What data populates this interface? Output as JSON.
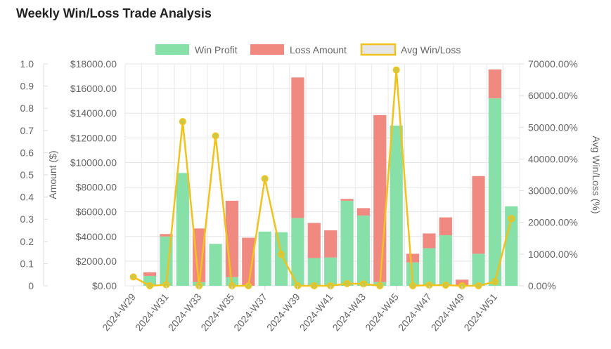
{
  "chart_data": {
    "type": "bar",
    "title": "Weekly Win/Loss Trade Analysis",
    "categories": [
      "2024-W29",
      "2024-W30",
      "2024-W31",
      "2024-W32",
      "2024-W33",
      "2024-W34",
      "2024-W35",
      "2024-W36",
      "2024-W37",
      "2024-W38",
      "2024-W39",
      "2024-W40",
      "2024-W41",
      "2024-W42",
      "2024-W43",
      "2024-W44",
      "2024-W45",
      "2024-W46",
      "2024-W47",
      "2024-W48",
      "2024-W49",
      "2024-W50",
      "2024-W51",
      "2024-W52"
    ],
    "x_tick_labels": [
      "2024-W29",
      "2024-W31",
      "2024-W33",
      "2024-W35",
      "2024-W37",
      "2024-W39",
      "2024-W41",
      "2024-W43",
      "2024-W45",
      "2024-W47",
      "2024-W49",
      "2024-W51"
    ],
    "series": [
      {
        "name": "Win Profit",
        "type": "bar",
        "axis": "y",
        "color": "#86e0a8",
        "stack": true,
        "values": [
          0,
          800,
          4000,
          9150,
          300,
          3400,
          700,
          0,
          4400,
          4350,
          5500,
          2250,
          2300,
          6900,
          5700,
          300,
          13000,
          1900,
          3050,
          4100,
          0,
          2600,
          15200,
          6450
        ]
      },
      {
        "name": "Loss Amount",
        "type": "bar",
        "axis": "y",
        "color": "#f08a80",
        "stack": true,
        "values": [
          0,
          300,
          200,
          0,
          4350,
          0,
          6200,
          3900,
          0,
          0,
          11400,
          2850,
          2200,
          150,
          600,
          13550,
          0,
          700,
          1200,
          1450,
          500,
          6300,
          2350,
          0
        ]
      },
      {
        "name": "Avg Win/Loss",
        "type": "line",
        "axis": "y2",
        "color": "#f2c21c",
        "values": [
          2800,
          0,
          300,
          51800,
          0,
          47300,
          0,
          0,
          33800,
          9900,
          0,
          0,
          0,
          700,
          600,
          0,
          68100,
          0,
          200,
          200,
          0,
          0,
          1300,
          21200
        ]
      }
    ],
    "ylim": [
      0,
      18000
    ],
    "y_ticks": [
      "$0.00",
      "$2000.00",
      "$4000.00",
      "$6000.00",
      "$8000.00",
      "$10000.00",
      "$12000.00",
      "$14000.00",
      "$16000.00",
      "$18000.00"
    ],
    "ylabel": "Amount ($)",
    "y2lim": [
      0,
      70000
    ],
    "y2_ticks": [
      "0.00%",
      "10000.00%",
      "20000.00%",
      "30000.00%",
      "40000.00%",
      "50000.00%",
      "60000.00%",
      "70000.00%"
    ],
    "y2label": "Avg Win/Loss (%)",
    "y3_ticks": [
      "0",
      "0.1",
      "0.2",
      "0.3",
      "0.4",
      "0.5",
      "0.6",
      "0.7",
      "0.8",
      "0.9",
      "1.0"
    ],
    "grid": true,
    "legend_position": "top"
  },
  "colors": {
    "win_fill": "#86e0a8",
    "loss_fill": "#f08a80",
    "line": "#f2c21c",
    "legend_line_fill": "#e6e6e6"
  }
}
